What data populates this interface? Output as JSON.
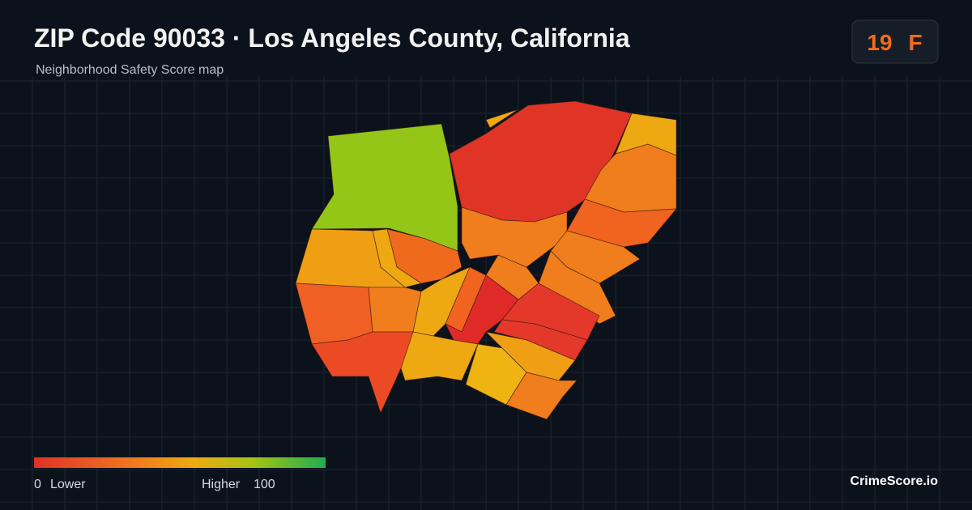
{
  "header": {
    "title": "ZIP Code 90033 · Los Angeles County, California",
    "subtitle": "Neighborhood Safety Score map"
  },
  "score": {
    "value": "19",
    "grade": "F"
  },
  "legend": {
    "min": "0",
    "min_label": "Lower",
    "max_label": "Higher",
    "max": "100"
  },
  "brand": "CrimeScore.io"
}
